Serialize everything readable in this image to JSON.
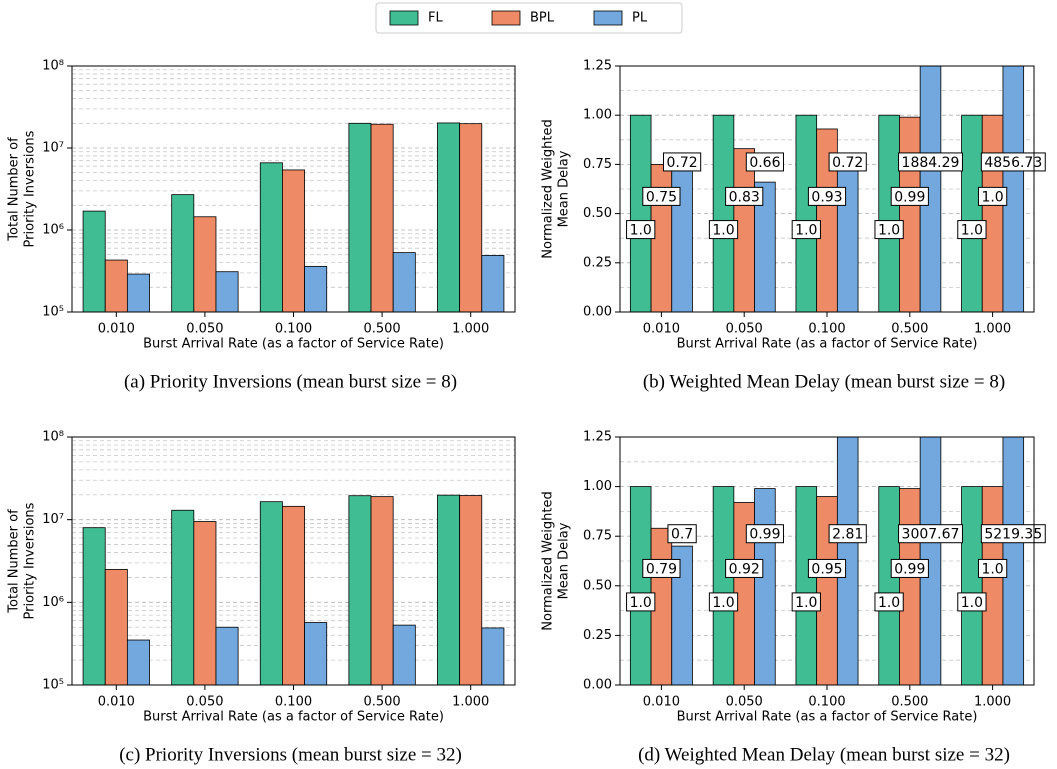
{
  "chart_data": [
    {
      "type": "bar",
      "title": "(a) Priority Inversions (mean burst size = 8)",
      "xlabel": "Burst Arrival Rate (as a factor of Service Rate)",
      "ylabel": [
        "Total Number of",
        "Priority Inversions"
      ],
      "categories": [
        "0.010",
        "0.050",
        "0.100",
        "0.500",
        "1.000"
      ],
      "series": [
        {
          "name": "FL",
          "color": "#40bd93",
          "values": [
            1700000,
            2700000,
            6600000,
            20000000,
            20200000
          ]
        },
        {
          "name": "BPL",
          "color": "#ee8a66",
          "values": [
            430000,
            1450000,
            5400000,
            19500000,
            19800000
          ]
        },
        {
          "name": "PL",
          "color": "#72a8de",
          "values": [
            290000,
            310000,
            360000,
            530000,
            490000
          ]
        }
      ],
      "log_scale": true,
      "ylim": [
        100000,
        100000000
      ],
      "yticks": [
        {
          "value": 100000,
          "label": "10⁵"
        },
        {
          "value": 1000000,
          "label": "10⁶"
        },
        {
          "value": 10000000,
          "label": "10⁷"
        },
        {
          "value": 100000000,
          "label": "10⁸"
        }
      ],
      "minor_yticks": [
        200000,
        300000,
        400000,
        500000,
        600000,
        700000,
        800000,
        900000,
        2000000,
        3000000,
        4000000,
        5000000,
        6000000,
        7000000,
        8000000,
        9000000,
        20000000,
        30000000,
        40000000,
        50000000,
        60000000,
        70000000,
        80000000,
        90000000
      ],
      "grid": true
    },
    {
      "type": "bar",
      "title": "(b) Weighted Mean Delay (mean burst size = 8)",
      "xlabel": "Burst Arrival Rate (as a factor of Service Rate)",
      "ylabel": [
        "Normalized Weighted",
        "Mean Delay"
      ],
      "categories": [
        "0.010",
        "0.050",
        "0.100",
        "0.500",
        "1.000"
      ],
      "series": [
        {
          "name": "FL",
          "color": "#40bd93",
          "values": [
            1.0,
            1.0,
            1.0,
            1.0,
            1.0
          ],
          "value_labels": [
            "1.0",
            "1.0",
            "1.0",
            "1.0",
            "1.0"
          ]
        },
        {
          "name": "BPL",
          "color": "#ee8a66",
          "values": [
            0.75,
            0.83,
            0.93,
            0.99,
            1.0
          ],
          "value_labels": [
            "0.75",
            "0.83",
            "0.93",
            "0.99",
            "1.0"
          ]
        },
        {
          "name": "PL",
          "color": "#72a8de",
          "values": [
            0.72,
            0.66,
            0.72,
            1884.29,
            4856.73
          ],
          "value_labels": [
            "0.72",
            "0.66",
            "0.72",
            "1884.29",
            "4856.73"
          ]
        }
      ],
      "log_scale": false,
      "ylim": [
        0,
        1.25
      ],
      "yticks": [
        {
          "value": 0,
          "label": "0.00"
        },
        {
          "value": 0.25,
          "label": "0.25"
        },
        {
          "value": 0.5,
          "label": "0.50"
        },
        {
          "value": 0.75,
          "label": "0.75"
        },
        {
          "value": 1,
          "label": "1.00"
        },
        {
          "value": 1.25,
          "label": "1.25"
        }
      ],
      "minor_yticks": [
        0.125,
        0.375,
        0.625,
        0.875,
        1.125
      ],
      "grid": true
    },
    {
      "type": "bar",
      "title": "(c) Priority Inversions (mean burst size = 32)",
      "xlabel": "Burst Arrival Rate (as a factor of Service Rate)",
      "ylabel": [
        "Total Number of",
        "Priority Inversions"
      ],
      "categories": [
        "0.010",
        "0.050",
        "0.100",
        "0.500",
        "1.000"
      ],
      "series": [
        {
          "name": "FL",
          "color": "#40bd93",
          "values": [
            8000000,
            13000000,
            16500000,
            19500000,
            19800000
          ]
        },
        {
          "name": "BPL",
          "color": "#ee8a66",
          "values": [
            2500000,
            9500000,
            14500000,
            19000000,
            19600000
          ]
        },
        {
          "name": "PL",
          "color": "#72a8de",
          "values": [
            350000,
            500000,
            570000,
            530000,
            490000
          ]
        }
      ],
      "log_scale": true,
      "ylim": [
        100000,
        100000000
      ],
      "yticks": [
        {
          "value": 100000,
          "label": "10⁵"
        },
        {
          "value": 1000000,
          "label": "10⁶"
        },
        {
          "value": 10000000,
          "label": "10⁷"
        },
        {
          "value": 100000000,
          "label": "10⁸"
        }
      ],
      "minor_yticks": [
        200000,
        300000,
        400000,
        500000,
        600000,
        700000,
        800000,
        900000,
        2000000,
        3000000,
        4000000,
        5000000,
        6000000,
        7000000,
        8000000,
        9000000,
        20000000,
        30000000,
        40000000,
        50000000,
        60000000,
        70000000,
        80000000,
        90000000
      ],
      "grid": true
    },
    {
      "type": "bar",
      "title": "(d) Weighted Mean Delay (mean burst size = 32)",
      "xlabel": "Burst Arrival Rate (as a factor of Service Rate)",
      "ylabel": [
        "Normalized Weighted",
        "Mean Delay"
      ],
      "categories": [
        "0.010",
        "0.050",
        "0.100",
        "0.500",
        "1.000"
      ],
      "series": [
        {
          "name": "FL",
          "color": "#40bd93",
          "values": [
            1.0,
            1.0,
            1.0,
            1.0,
            1.0
          ],
          "value_labels": [
            "1.0",
            "1.0",
            "1.0",
            "1.0",
            "1.0"
          ]
        },
        {
          "name": "BPL",
          "color": "#ee8a66",
          "values": [
            0.79,
            0.92,
            0.95,
            0.99,
            1.0
          ],
          "value_labels": [
            "0.79",
            "0.92",
            "0.95",
            "0.99",
            "1.0"
          ]
        },
        {
          "name": "PL",
          "color": "#72a8de",
          "values": [
            0.7,
            0.99,
            2.81,
            3007.67,
            5219.35
          ],
          "value_labels": [
            "0.7",
            "0.99",
            "2.81",
            "3007.67",
            "5219.35"
          ]
        }
      ],
      "log_scale": false,
      "ylim": [
        0,
        1.25
      ],
      "yticks": [
        {
          "value": 0,
          "label": "0.00"
        },
        {
          "value": 0.25,
          "label": "0.25"
        },
        {
          "value": 0.5,
          "label": "0.50"
        },
        {
          "value": 0.75,
          "label": "0.75"
        },
        {
          "value": 1,
          "label": "1.00"
        },
        {
          "value": 1.25,
          "label": "1.25"
        }
      ],
      "minor_yticks": [
        0.125,
        0.375,
        0.625,
        0.875,
        1.125
      ],
      "grid": true
    }
  ]
}
